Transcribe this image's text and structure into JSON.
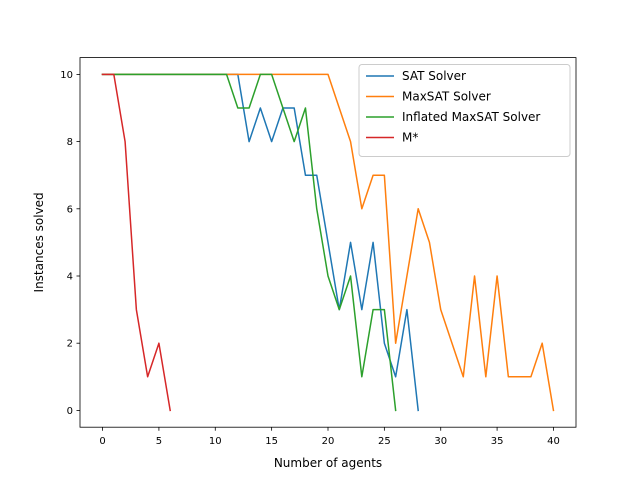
{
  "chart_data": {
    "type": "line",
    "title": "",
    "xlabel": "Number of agents",
    "ylabel": "Instances solved",
    "xlim": [
      -2,
      42
    ],
    "ylim": [
      -0.5,
      10.5
    ],
    "xticks": [
      0,
      5,
      10,
      15,
      20,
      25,
      30,
      35,
      40
    ],
    "yticks": [
      0,
      2,
      4,
      6,
      8,
      10
    ],
    "grid": false,
    "legend_position": "top-right",
    "series": [
      {
        "name": "SAT Solver",
        "color": "#1f77b4",
        "x": [
          0,
          1,
          2,
          3,
          4,
          5,
          6,
          7,
          8,
          9,
          10,
          11,
          12,
          13,
          14,
          15,
          16,
          17,
          18,
          19,
          20,
          21,
          22,
          23,
          24,
          25,
          26,
          27,
          28
        ],
        "y": [
          10,
          10,
          10,
          10,
          10,
          10,
          10,
          10,
          10,
          10,
          10,
          10,
          10,
          8,
          9,
          8,
          9,
          9,
          7,
          7,
          5,
          3,
          5,
          3,
          5,
          2,
          1,
          3,
          0
        ]
      },
      {
        "name": "MaxSAT Solver",
        "color": "#ff7f0e",
        "x": [
          0,
          1,
          2,
          3,
          4,
          5,
          6,
          7,
          8,
          9,
          10,
          11,
          12,
          13,
          14,
          15,
          16,
          17,
          18,
          19,
          20,
          21,
          22,
          23,
          24,
          25,
          26,
          27,
          28,
          29,
          30,
          31,
          32,
          33,
          34,
          35,
          36,
          37,
          38,
          39,
          40
        ],
        "y": [
          10,
          10,
          10,
          10,
          10,
          10,
          10,
          10,
          10,
          10,
          10,
          10,
          10,
          10,
          10,
          10,
          10,
          10,
          10,
          10,
          10,
          9,
          8,
          6,
          7,
          7,
          2,
          4,
          6,
          5,
          3,
          2,
          1,
          4,
          1,
          4,
          1,
          1,
          1,
          2,
          0
        ]
      },
      {
        "name": "Inflated MaxSAT Solver",
        "color": "#2ca02c",
        "x": [
          0,
          1,
          2,
          3,
          4,
          5,
          6,
          7,
          8,
          9,
          10,
          11,
          12,
          13,
          14,
          15,
          16,
          17,
          18,
          19,
          20,
          21,
          22,
          23,
          24,
          25,
          26
        ],
        "y": [
          10,
          10,
          10,
          10,
          10,
          10,
          10,
          10,
          10,
          10,
          10,
          10,
          9,
          9,
          10,
          10,
          9,
          8,
          9,
          6,
          4,
          3,
          4,
          1,
          3,
          3,
          0
        ]
      },
      {
        "name": "M*",
        "color": "#d62728",
        "x": [
          0,
          1,
          2,
          3,
          4,
          5,
          6
        ],
        "y": [
          10,
          10,
          8,
          3,
          1,
          2,
          0
        ]
      }
    ]
  }
}
